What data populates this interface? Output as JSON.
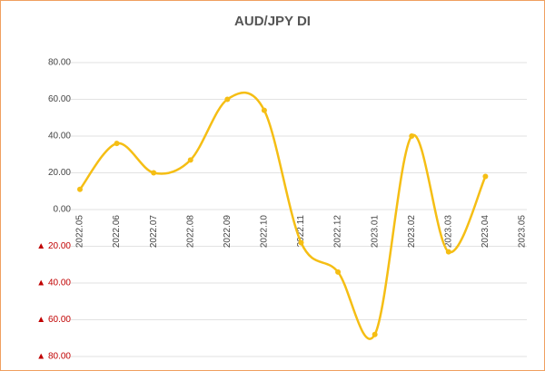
{
  "chart_data": {
    "type": "line",
    "title": "AUD/JPY  DI",
    "categories": [
      "2022.05",
      "2022.06",
      "2022.07",
      "2022.08",
      "2022.09",
      "2022.10",
      "2022.11",
      "2022.12",
      "2023.01",
      "2023.02",
      "2023.03",
      "2023.04",
      "2023.05"
    ],
    "series": [
      {
        "name": "AUD/JPY DI",
        "color": "#f5be14",
        "values": [
          11,
          36,
          20,
          27,
          60,
          54,
          -18,
          -34,
          -68,
          40,
          -23,
          18,
          null
        ]
      }
    ],
    "ylim": [
      -80,
      80
    ],
    "yticks": [
      {
        "value": 80,
        "label": "80.00"
      },
      {
        "value": 60,
        "label": "60.00"
      },
      {
        "value": 40,
        "label": "40.00"
      },
      {
        "value": 20,
        "label": "20.00"
      },
      {
        "value": 0,
        "label": "0.00"
      },
      {
        "value": -20,
        "label": "▲ 20.00"
      },
      {
        "value": -40,
        "label": "▲ 40.00"
      },
      {
        "value": -60,
        "label": "▲ 60.00"
      },
      {
        "value": -80,
        "label": "▲ 80.00"
      }
    ],
    "grid": true,
    "smooth": true,
    "negative_label_color": "#c00000"
  }
}
